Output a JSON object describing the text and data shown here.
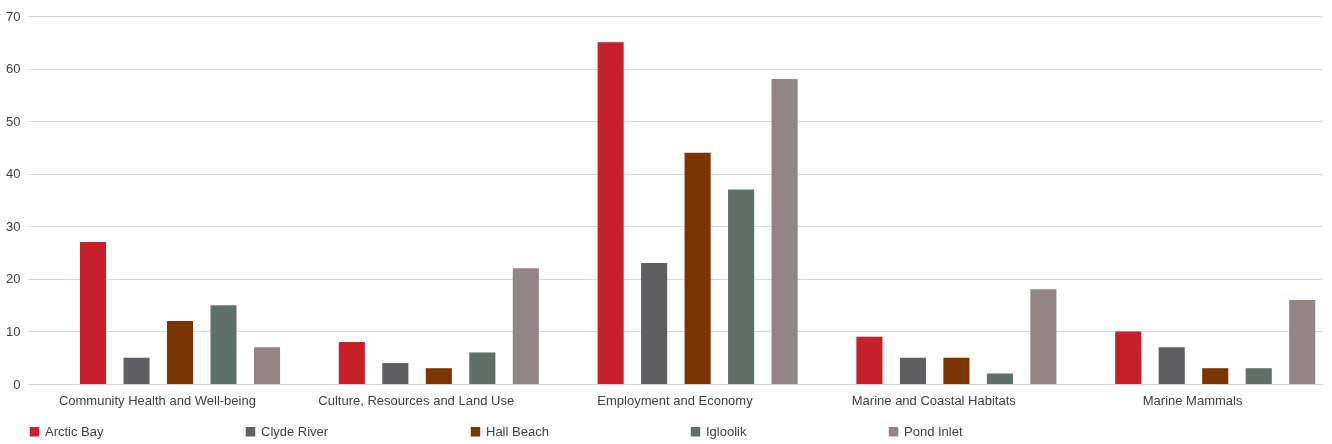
{
  "chart_data": {
    "type": "bar",
    "categories": [
      "Community Health and Well-being",
      "Culture, Resources and Land Use",
      "Employment and Economy",
      "Marine and Coastal Habitats",
      "Marine Mammals"
    ],
    "series": [
      {
        "name": "Arctic Bay",
        "color": "#c8202a",
        "values": [
          27,
          8,
          65,
          9,
          10
        ]
      },
      {
        "name": "Clyde River",
        "color": "#5f5f62",
        "values": [
          5,
          4,
          23,
          5,
          7
        ]
      },
      {
        "name": "Hall Beach",
        "color": "#7a3500",
        "values": [
          12,
          3,
          44,
          5,
          3
        ]
      },
      {
        "name": "Igloolik",
        "color": "#5e7068",
        "values": [
          15,
          6,
          37,
          2,
          3
        ]
      },
      {
        "name": "Pond Inlet",
        "color": "#918585",
        "values": [
          7,
          22,
          58,
          18,
          16
        ]
      }
    ],
    "ylim": [
      0,
      70
    ],
    "yticks": [
      0,
      10,
      20,
      30,
      40,
      50,
      60,
      70
    ],
    "grid": "y",
    "legend": "bottom"
  }
}
